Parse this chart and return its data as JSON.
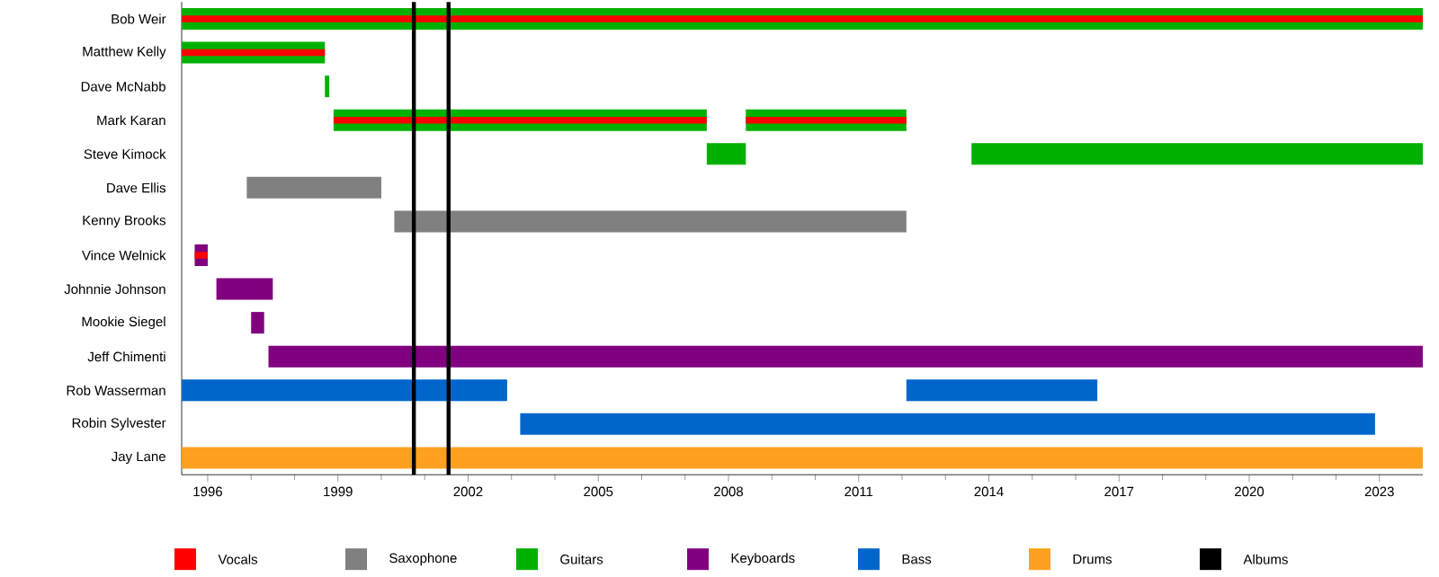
{
  "chart_data": {
    "type": "bar",
    "orientation": "horizontal",
    "categories": [
      "Bob Weir",
      "Matthew Kelly",
      "Dave McNabb",
      "Mark Karan",
      "Steve Kimock",
      "Dave Ellis",
      "Kenny Brooks",
      "Vince Welnick",
      "Johnnie Johnson",
      "Mookie Siegel",
      "Jeff Chimenti",
      "Rob Wasserman",
      "Robin Sylvester",
      "Jay Lane"
    ],
    "series": [
      {
        "name": "Vocals",
        "color": "#ff0000",
        "base": [
          1995.4,
          1995.4,
          null,
          1998.9,
          null,
          null,
          null,
          1995.7,
          null,
          null,
          null,
          null,
          null,
          null
        ],
        "values": [
          28.6,
          3.3,
          null,
          8.6,
          null,
          null,
          null,
          0.3,
          null,
          null,
          null,
          null,
          null,
          null
        ]
      },
      {
        "color": "#ff0000",
        "base": [
          null,
          null,
          null,
          2008.4,
          null,
          null,
          null,
          null,
          null,
          null,
          null,
          null,
          null,
          null
        ],
        "values": [
          null,
          null,
          null,
          3.7,
          null,
          null,
          null,
          null,
          null,
          null,
          null,
          null,
          null,
          null
        ]
      },
      {
        "name": "Saxophone",
        "color": "#808080",
        "base": [
          null,
          null,
          null,
          null,
          null,
          1996.9,
          2000.3,
          null,
          null,
          null,
          null,
          null,
          null,
          null
        ],
        "values": [
          null,
          null,
          null,
          null,
          null,
          3.1,
          11.8,
          null,
          null,
          null,
          null,
          null,
          null,
          null
        ]
      },
      {
        "name": "Guitars",
        "color": "#00b000",
        "base": [
          1995.4,
          1995.4,
          1998.7,
          1998.9,
          2007.5,
          null,
          null,
          null,
          null,
          null,
          null,
          null,
          null,
          null
        ],
        "values": [
          28.6,
          3.3,
          0.1,
          8.6,
          0.9,
          null,
          null,
          null,
          null,
          null,
          null,
          null,
          null,
          null
        ]
      },
      {
        "color": "#00b000",
        "base": [
          null,
          null,
          null,
          2008.4,
          2013.6,
          null,
          null,
          null,
          null,
          null,
          null,
          null,
          null,
          null
        ],
        "values": [
          null,
          null,
          null,
          3.7,
          10.4,
          null,
          null,
          null,
          null,
          null,
          null,
          null,
          null,
          null
        ]
      },
      {
        "name": "Keyboards",
        "color": "#800080",
        "base": [
          null,
          null,
          null,
          null,
          null,
          null,
          null,
          1995.7,
          1996.2,
          1997.0,
          1997.4,
          null,
          null,
          null
        ],
        "values": [
          null,
          null,
          null,
          null,
          null,
          null,
          null,
          0.3,
          1.3,
          0.3,
          26.6,
          null,
          null,
          null
        ]
      },
      {
        "name": "Bass",
        "color": "#0066cc",
        "base": [
          null,
          null,
          null,
          null,
          null,
          null,
          null,
          null,
          null,
          null,
          null,
          1995.4,
          2003.2,
          null
        ],
        "values": [
          null,
          null,
          null,
          null,
          null,
          null,
          null,
          null,
          null,
          null,
          null,
          7.5,
          19.7,
          null
        ]
      },
      {
        "color": "#0066cc",
        "base": [
          null,
          null,
          null,
          null,
          null,
          null,
          null,
          null,
          null,
          null,
          null,
          2012.1,
          null,
          null
        ],
        "values": [
          null,
          null,
          null,
          null,
          null,
          null,
          null,
          null,
          null,
          null,
          null,
          4.4,
          null,
          null
        ]
      },
      {
        "name": "Drums",
        "color": "#ffa020",
        "base": [
          null,
          null,
          null,
          null,
          null,
          null,
          null,
          null,
          null,
          null,
          null,
          null,
          null,
          1995.4
        ],
        "values": [
          null,
          null,
          null,
          null,
          null,
          null,
          null,
          null,
          null,
          null,
          null,
          null,
          null,
          28.6
        ]
      }
    ],
    "ref_lines": [
      {
        "axis": "x",
        "value": 2000.75,
        "label": "Albums",
        "color": "#000000"
      },
      {
        "axis": "x",
        "value": 2001.55,
        "color": "#000000"
      }
    ],
    "xlim": [
      1995.4,
      2024.0
    ],
    "xticks": [
      1996,
      {
        "value": 1997,
        "label": null
      },
      {
        "value": 1998,
        "label": null
      },
      1999,
      {
        "value": 2000,
        "label": null
      },
      {
        "value": 2001,
        "label": null
      },
      2002,
      {
        "value": 2003,
        "label": null
      },
      {
        "value": 2004,
        "label": null
      },
      2005,
      {
        "value": 2006,
        "label": null
      },
      {
        "value": 2007,
        "label": null
      },
      2008,
      {
        "value": 2009,
        "label": null
      },
      {
        "value": 2010,
        "label": null
      },
      2011,
      {
        "value": 2012,
        "label": null
      },
      {
        "value": 2013,
        "label": null
      },
      2014,
      {
        "value": 2015,
        "label": null
      },
      {
        "value": 2016,
        "label": null
      },
      2017,
      {
        "value": 2018,
        "label": null
      },
      {
        "value": 2019,
        "label": null
      },
      2020,
      {
        "value": 2021,
        "label": null
      },
      {
        "value": 2022,
        "label": null
      },
      2023
    ],
    "legend": "bottom",
    "grid": false
  }
}
